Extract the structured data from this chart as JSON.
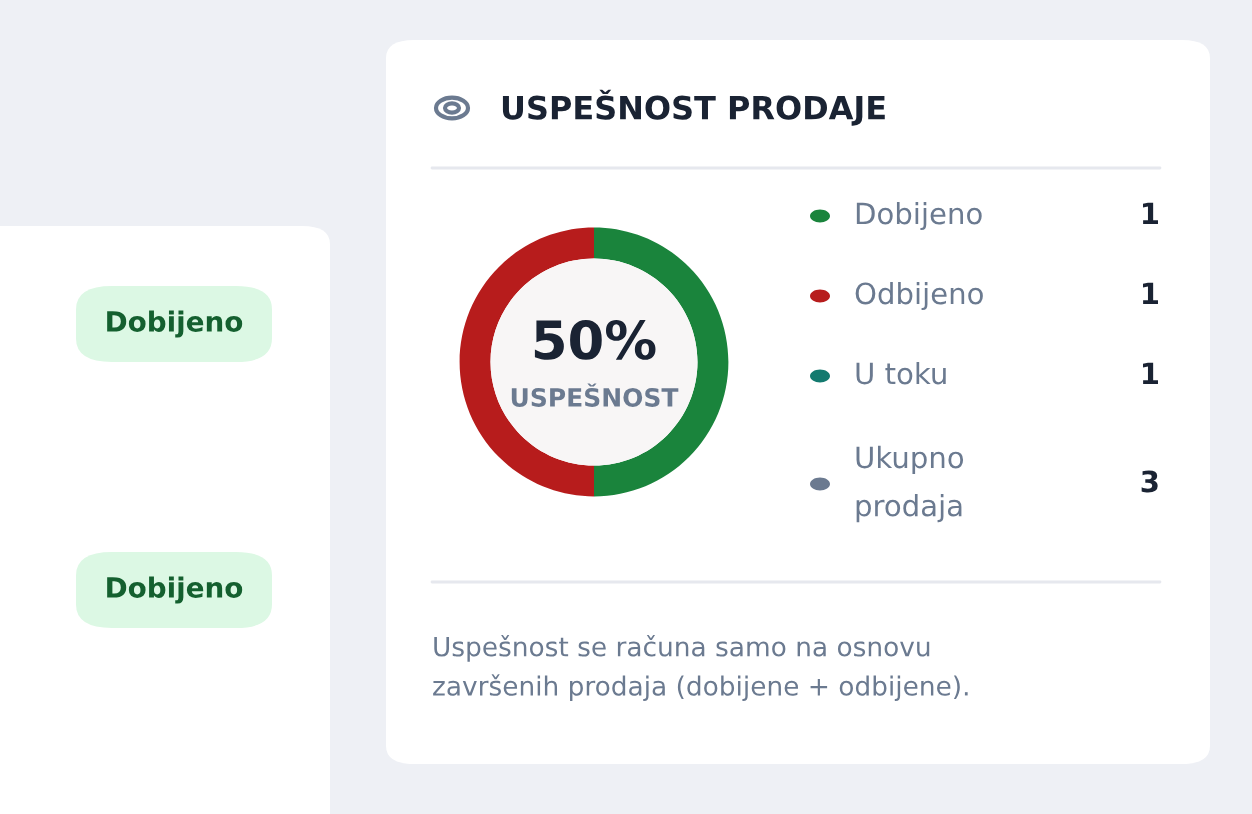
{
  "chart_data": {
    "type": "donut",
    "title": "USPEŠNOST PRODAJE",
    "categories": [
      "Dobijeno",
      "Odbijeno"
    ],
    "values": [
      1,
      1
    ],
    "colors": [
      "#1a843c",
      "#b71c1c"
    ],
    "value_labels": [
      "1",
      "1"
    ],
    "legend": "right",
    "annotations": [
      "50%",
      "USPEŠNOST",
      "U toku",
      "1",
      "Ukupno\nprodaja",
      "3",
      "Uspešnost se računa samo na osnovu\nzavršenih prodaja (dobijene + odbijene).",
      "Dobijeno",
      "Dobijeno"
    ]
  }
}
